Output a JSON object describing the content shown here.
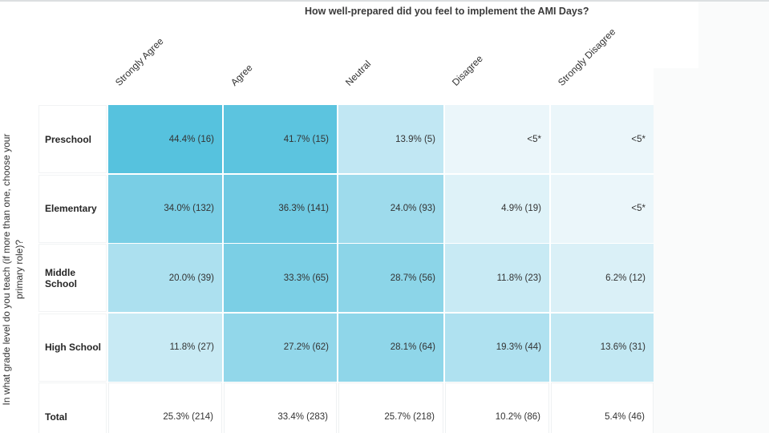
{
  "page": {
    "title": "How well-prepared did you feel to implement the AMI Days?",
    "y_axis_label": {
      "line1": "In what grade level do you teach (if more than one, choose your",
      "line2": "primary role)?"
    }
  },
  "colors": {
    "fill_max": "#56C2DE",
    "fill_min": "#EBF6FA",
    "cell_text": "#333333",
    "title_text": "#3A3A3A",
    "canvas_bg": "#FFFFFF",
    "page_bg": "#FAFBFB",
    "grid_line": "#EEF1F2"
  },
  "chart_data": {
    "type": "heatmap",
    "title": "How well-prepared did you feel to implement the AMI Days?",
    "x_axis_categories": [
      "Strongly Agree",
      "Agree",
      "Neutral",
      "Disagree",
      "Strongly Disagree"
    ],
    "y_axis_question": "In what grade level do you teach (if more than one, choose your primary role)?",
    "suppressed_value_marker": "<5*",
    "legend_position": "none",
    "rows": [
      {
        "label": "Preschool",
        "is_total": false,
        "cells": [
          {
            "text": "44.4% (16)",
            "percent": 44.4,
            "count": 16,
            "fill": "#56C2DE"
          },
          {
            "text": "41.7% (15)",
            "percent": 41.7,
            "count": 15,
            "fill": "#5CC4DF"
          },
          {
            "text": "13.9% (5)",
            "percent": 13.9,
            "count": 5,
            "fill": "#C1E7F3"
          },
          {
            "text": "<5*",
            "percent": null,
            "count": null,
            "fill": "#EBF6FA"
          },
          {
            "text": "<5*",
            "percent": null,
            "count": null,
            "fill": "#EBF6FA"
          }
        ]
      },
      {
        "label": "Elementary",
        "is_total": false,
        "cells": [
          {
            "text": "34.0% (132)",
            "percent": 34.0,
            "count": 132,
            "fill": "#79CEE5"
          },
          {
            "text": "36.3% (141)",
            "percent": 36.3,
            "count": 141,
            "fill": "#6FCAE3"
          },
          {
            "text": "24.0% (93)",
            "percent": 24.0,
            "count": 93,
            "fill": "#9EDBEC"
          },
          {
            "text": "4.9% (19)",
            "percent": 4.9,
            "count": 19,
            "fill": "#DEF2F8"
          },
          {
            "text": "<5*",
            "percent": null,
            "count": null,
            "fill": "#EBF6FA"
          }
        ]
      },
      {
        "label": "Middle School",
        "is_total": false,
        "cells": [
          {
            "text": "20.0% (39)",
            "percent": 20.0,
            "count": 39,
            "fill": "#ACE0EF"
          },
          {
            "text": "33.3% (65)",
            "percent": 33.3,
            "count": 65,
            "fill": "#7BCFE5"
          },
          {
            "text": "28.7% (56)",
            "percent": 28.7,
            "count": 56,
            "fill": "#8CD5E8"
          },
          {
            "text": "11.8% (23)",
            "percent": 11.8,
            "count": 23,
            "fill": "#C8EAF4"
          },
          {
            "text": "6.2% (12)",
            "percent": 6.2,
            "count": 12,
            "fill": "#DAF0F7"
          }
        ]
      },
      {
        "label": "High School",
        "is_total": false,
        "cells": [
          {
            "text": "11.8% (27)",
            "percent": 11.8,
            "count": 27,
            "fill": "#C8EAF4"
          },
          {
            "text": "27.2% (62)",
            "percent": 27.2,
            "count": 62,
            "fill": "#92D7EA"
          },
          {
            "text": "28.1% (64)",
            "percent": 28.1,
            "count": 64,
            "fill": "#8FD6E9"
          },
          {
            "text": "19.3% (44)",
            "percent": 19.3,
            "count": 44,
            "fill": "#AFE1F0"
          },
          {
            "text": "13.6% (31)",
            "percent": 13.6,
            "count": 31,
            "fill": "#C2E8F3"
          }
        ]
      },
      {
        "label": "Total",
        "is_total": true,
        "cells": [
          {
            "text": "25.3% (214)",
            "percent": 25.3,
            "count": 214,
            "fill": null
          },
          {
            "text": "33.4% (283)",
            "percent": 33.4,
            "count": 283,
            "fill": null
          },
          {
            "text": "25.7% (218)",
            "percent": 25.7,
            "count": 218,
            "fill": null
          },
          {
            "text": "10.2% (86)",
            "percent": 10.2,
            "count": 86,
            "fill": null
          },
          {
            "text": "5.4% (46)",
            "percent": 5.4,
            "count": 46,
            "fill": null
          }
        ]
      }
    ]
  }
}
